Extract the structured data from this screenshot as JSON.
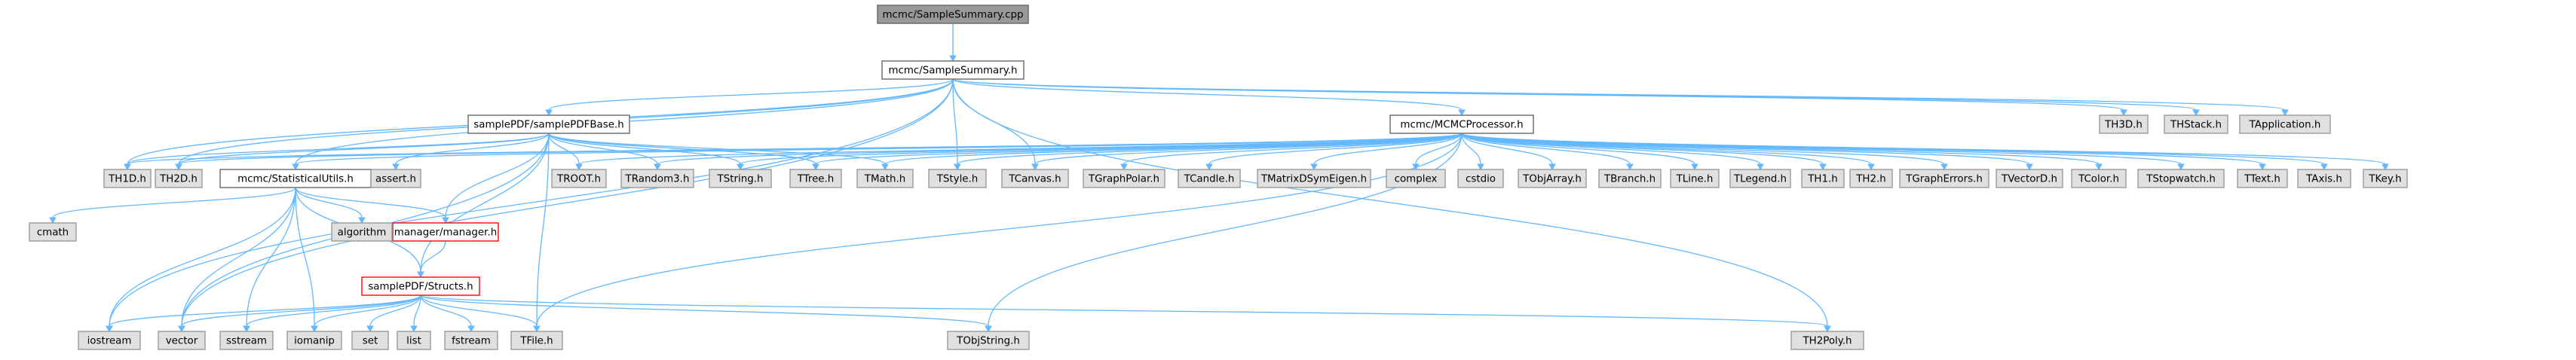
{
  "nodes": [
    {
      "id": "root",
      "label": "mcmc/SampleSummary.cpp",
      "kind": "root"
    },
    {
      "id": "ssh",
      "label": "mcmc/SampleSummary.h",
      "kind": "file"
    },
    {
      "id": "spdfb",
      "label": "samplePDF/samplePDFBase.h",
      "kind": "file"
    },
    {
      "id": "mcmcp",
      "label": "mcmc/MCMCProcessor.h",
      "kind": "file"
    },
    {
      "id": "stat",
      "label": "mcmc/StatisticalUtils.h",
      "kind": "file"
    },
    {
      "id": "mgr",
      "label": "manager/manager.h",
      "kind": "missing"
    },
    {
      "id": "structs",
      "label": "samplePDF/Structs.h",
      "kind": "missing"
    },
    {
      "id": "th3d",
      "label": "TH3D.h",
      "kind": "leaf"
    },
    {
      "id": "thstack",
      "label": "THStack.h",
      "kind": "leaf"
    },
    {
      "id": "tapp",
      "label": "TApplication.h",
      "kind": "leaf"
    },
    {
      "id": "th1d",
      "label": "TH1D.h",
      "kind": "leaf"
    },
    {
      "id": "th2d",
      "label": "TH2D.h",
      "kind": "leaf"
    },
    {
      "id": "assert",
      "label": "assert.h",
      "kind": "leaf"
    },
    {
      "id": "troot",
      "label": "TROOT.h",
      "kind": "leaf"
    },
    {
      "id": "trandom3",
      "label": "TRandom3.h",
      "kind": "leaf"
    },
    {
      "id": "tstring",
      "label": "TString.h",
      "kind": "leaf"
    },
    {
      "id": "ttree",
      "label": "TTree.h",
      "kind": "leaf"
    },
    {
      "id": "tmath",
      "label": "TMath.h",
      "kind": "leaf"
    },
    {
      "id": "tstyle",
      "label": "TStyle.h",
      "kind": "leaf"
    },
    {
      "id": "tcanvas",
      "label": "TCanvas.h",
      "kind": "leaf"
    },
    {
      "id": "tgraphpolar",
      "label": "TGraphPolar.h",
      "kind": "leaf"
    },
    {
      "id": "tcandle",
      "label": "TCandle.h",
      "kind": "leaf"
    },
    {
      "id": "tmatrix",
      "label": "TMatrixDSymEigen.h",
      "kind": "leaf"
    },
    {
      "id": "complex",
      "label": "complex",
      "kind": "leaf"
    },
    {
      "id": "cstdio",
      "label": "cstdio",
      "kind": "leaf"
    },
    {
      "id": "tobjarray",
      "label": "TObjArray.h",
      "kind": "leaf"
    },
    {
      "id": "tbranch",
      "label": "TBranch.h",
      "kind": "leaf"
    },
    {
      "id": "tline",
      "label": "TLine.h",
      "kind": "leaf"
    },
    {
      "id": "tlegend",
      "label": "TLegend.h",
      "kind": "leaf"
    },
    {
      "id": "th1",
      "label": "TH1.h",
      "kind": "leaf"
    },
    {
      "id": "th2",
      "label": "TH2.h",
      "kind": "leaf"
    },
    {
      "id": "tgrapherrors",
      "label": "TGraphErrors.h",
      "kind": "leaf"
    },
    {
      "id": "tvectord",
      "label": "TVectorD.h",
      "kind": "leaf"
    },
    {
      "id": "tcolor",
      "label": "TColor.h",
      "kind": "leaf"
    },
    {
      "id": "tstopwatch",
      "label": "TStopwatch.h",
      "kind": "leaf"
    },
    {
      "id": "ttext",
      "label": "TText.h",
      "kind": "leaf"
    },
    {
      "id": "taxis",
      "label": "TAxis.h",
      "kind": "leaf"
    },
    {
      "id": "tkey",
      "label": "TKey.h",
      "kind": "leaf"
    },
    {
      "id": "cmath",
      "label": "cmath",
      "kind": "leaf"
    },
    {
      "id": "algorithm",
      "label": "algorithm",
      "kind": "leaf"
    },
    {
      "id": "iostream",
      "label": "iostream",
      "kind": "leaf"
    },
    {
      "id": "vector",
      "label": "vector",
      "kind": "leaf"
    },
    {
      "id": "sstream",
      "label": "sstream",
      "kind": "leaf"
    },
    {
      "id": "iomanip",
      "label": "iomanip",
      "kind": "leaf"
    },
    {
      "id": "set",
      "label": "set",
      "kind": "leaf"
    },
    {
      "id": "list",
      "label": "list",
      "kind": "leaf"
    },
    {
      "id": "fstream",
      "label": "fstream",
      "kind": "leaf"
    },
    {
      "id": "tfile",
      "label": "TFile.h",
      "kind": "leaf"
    },
    {
      "id": "tobjstring",
      "label": "TObjString.h",
      "kind": "leaf"
    },
    {
      "id": "th2poly",
      "label": "TH2Poly.h",
      "kind": "leaf"
    }
  ],
  "edges": [
    [
      "root",
      "ssh"
    ],
    [
      "ssh",
      "th3d"
    ],
    [
      "ssh",
      "thstack"
    ],
    [
      "ssh",
      "tapp"
    ],
    [
      "ssh",
      "spdfb"
    ],
    [
      "ssh",
      "mcmcp"
    ],
    [
      "ssh",
      "stat"
    ],
    [
      "ssh",
      "th1d"
    ],
    [
      "ssh",
      "th2d"
    ],
    [
      "ssh",
      "tstyle"
    ],
    [
      "ssh",
      "tcanvas"
    ],
    [
      "ssh",
      "iostream"
    ],
    [
      "ssh",
      "vector"
    ],
    [
      "ssh",
      "th2poly"
    ],
    [
      "spdfb",
      "th1d"
    ],
    [
      "spdfb",
      "th2d"
    ],
    [
      "spdfb",
      "assert"
    ],
    [
      "spdfb",
      "troot"
    ],
    [
      "spdfb",
      "trandom3"
    ],
    [
      "spdfb",
      "tstring"
    ],
    [
      "spdfb",
      "ttree"
    ],
    [
      "spdfb",
      "tmath"
    ],
    [
      "spdfb",
      "mgr"
    ],
    [
      "spdfb",
      "structs"
    ],
    [
      "spdfb",
      "tfile"
    ],
    [
      "spdfb",
      "vector"
    ],
    [
      "mcmcp",
      "th1d"
    ],
    [
      "mcmcp",
      "th2d"
    ],
    [
      "mcmcp",
      "stat"
    ],
    [
      "mcmcp",
      "troot"
    ],
    [
      "mcmcp",
      "trandom3"
    ],
    [
      "mcmcp",
      "tstring"
    ],
    [
      "mcmcp",
      "ttree"
    ],
    [
      "mcmcp",
      "tmath"
    ],
    [
      "mcmcp",
      "tstyle"
    ],
    [
      "mcmcp",
      "tcanvas"
    ],
    [
      "mcmcp",
      "tgraphpolar"
    ],
    [
      "mcmcp",
      "tcandle"
    ],
    [
      "mcmcp",
      "tmatrix"
    ],
    [
      "mcmcp",
      "complex"
    ],
    [
      "mcmcp",
      "cstdio"
    ],
    [
      "mcmcp",
      "tobjarray"
    ],
    [
      "mcmcp",
      "tbranch"
    ],
    [
      "mcmcp",
      "tline"
    ],
    [
      "mcmcp",
      "tlegend"
    ],
    [
      "mcmcp",
      "th1"
    ],
    [
      "mcmcp",
      "th2"
    ],
    [
      "mcmcp",
      "tgrapherrors"
    ],
    [
      "mcmcp",
      "tvectord"
    ],
    [
      "mcmcp",
      "tcolor"
    ],
    [
      "mcmcp",
      "tstopwatch"
    ],
    [
      "mcmcp",
      "ttext"
    ],
    [
      "mcmcp",
      "taxis"
    ],
    [
      "mcmcp",
      "tkey"
    ],
    [
      "mcmcp",
      "tfile"
    ],
    [
      "mcmcp",
      "tobjstring"
    ],
    [
      "stat",
      "cmath"
    ],
    [
      "stat",
      "algorithm"
    ],
    [
      "stat",
      "mgr"
    ],
    [
      "stat",
      "structs"
    ],
    [
      "stat",
      "iostream"
    ],
    [
      "stat",
      "vector"
    ],
    [
      "stat",
      "sstream"
    ],
    [
      "stat",
      "iomanip"
    ],
    [
      "mgr",
      "structs"
    ],
    [
      "structs",
      "iostream"
    ],
    [
      "structs",
      "vector"
    ],
    [
      "structs",
      "sstream"
    ],
    [
      "structs",
      "iomanip"
    ],
    [
      "structs",
      "set"
    ],
    [
      "structs",
      "list"
    ],
    [
      "structs",
      "fstream"
    ],
    [
      "structs",
      "tfile"
    ],
    [
      "structs",
      "tobjstring"
    ],
    [
      "structs",
      "th2poly"
    ]
  ]
}
